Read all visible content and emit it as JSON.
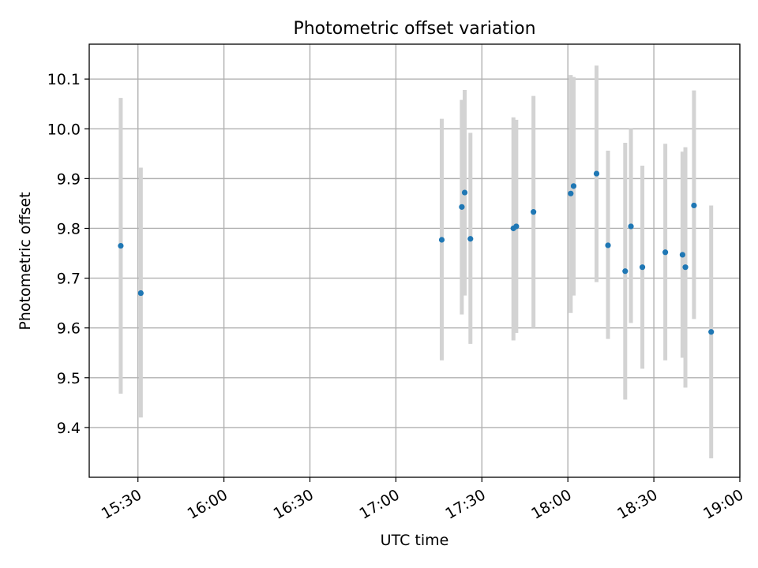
{
  "chart_data": {
    "type": "scatter",
    "title": "Photometric offset variation",
    "xlabel": "UTC time",
    "ylabel": "Photometric offset",
    "x_axis_type": "time",
    "xlim": [
      "15:13",
      "19:00"
    ],
    "ylim": [
      9.3,
      10.17
    ],
    "x_ticks": [
      "15:30",
      "16:00",
      "16:30",
      "17:00",
      "17:30",
      "18:00",
      "18:30",
      "19:00"
    ],
    "y_ticks": [
      9.4,
      9.5,
      9.6,
      9.7,
      9.8,
      9.9,
      10.0,
      10.1
    ],
    "grid": true,
    "point_color": "#1f77b4",
    "errorbar_color": "#d3d3d3",
    "points": [
      {
        "x": "15:24",
        "y": 9.765,
        "ylow": 9.468,
        "yhigh": 10.062
      },
      {
        "x": "15:31",
        "y": 9.67,
        "ylow": 9.42,
        "yhigh": 9.922
      },
      {
        "x": "17:16",
        "y": 9.777,
        "ylow": 9.535,
        "yhigh": 10.02
      },
      {
        "x": "17:23",
        "y": 9.843,
        "ylow": 9.627,
        "yhigh": 10.058
      },
      {
        "x": "17:24",
        "y": 9.872,
        "ylow": 9.665,
        "yhigh": 10.078
      },
      {
        "x": "17:26",
        "y": 9.779,
        "ylow": 9.568,
        "yhigh": 9.992
      },
      {
        "x": "17:41",
        "y": 9.8,
        "ylow": 9.575,
        "yhigh": 10.023
      },
      {
        "x": "17:42",
        "y": 9.804,
        "ylow": 9.59,
        "yhigh": 10.018
      },
      {
        "x": "17:48",
        "y": 9.833,
        "ylow": 9.6,
        "yhigh": 10.066
      },
      {
        "x": "18:01",
        "y": 9.87,
        "ylow": 9.63,
        "yhigh": 10.108
      },
      {
        "x": "18:02",
        "y": 9.885,
        "ylow": 9.665,
        "yhigh": 10.104
      },
      {
        "x": "18:10",
        "y": 9.91,
        "ylow": 9.692,
        "yhigh": 10.127
      },
      {
        "x": "18:14",
        "y": 9.766,
        "ylow": 9.578,
        "yhigh": 9.956
      },
      {
        "x": "18:20",
        "y": 9.714,
        "ylow": 9.456,
        "yhigh": 9.972
      },
      {
        "x": "18:22",
        "y": 9.804,
        "ylow": 9.61,
        "yhigh": 10.0
      },
      {
        "x": "18:26",
        "y": 9.722,
        "ylow": 9.518,
        "yhigh": 9.926
      },
      {
        "x": "18:34",
        "y": 9.752,
        "ylow": 9.535,
        "yhigh": 9.97
      },
      {
        "x": "18:40",
        "y": 9.747,
        "ylow": 9.54,
        "yhigh": 9.954
      },
      {
        "x": "18:41",
        "y": 9.722,
        "ylow": 9.48,
        "yhigh": 9.963
      },
      {
        "x": "18:44",
        "y": 9.846,
        "ylow": 9.618,
        "yhigh": 10.077
      },
      {
        "x": "18:50",
        "y": 9.592,
        "ylow": 9.338,
        "yhigh": 9.846
      }
    ]
  }
}
